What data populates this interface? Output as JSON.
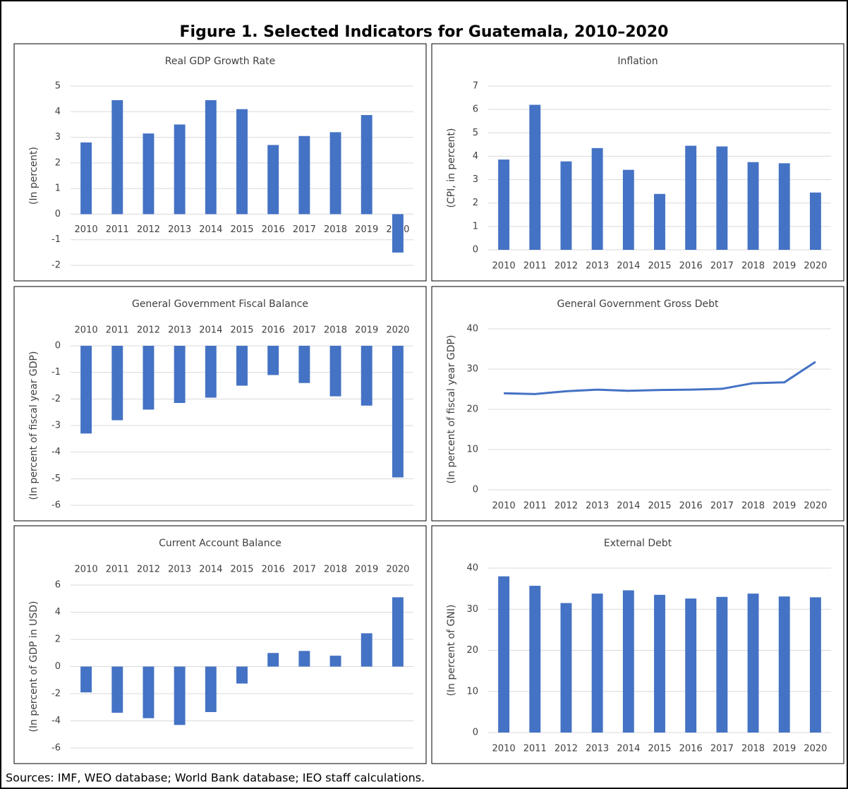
{
  "title": "Figure 1. Selected Indicators for Guatemala, 2010–2020",
  "source": "Sources: IMF, WEO database; World Bank database; IEO staff calculations.",
  "chart_data": [
    {
      "type": "bar",
      "title": "Real GDP Growth Rate",
      "y_label": "(In percent)",
      "x_label_position": "axis",
      "categories": [
        "2010",
        "2011",
        "2012",
        "2013",
        "2014",
        "2015",
        "2016",
        "2017",
        "2018",
        "2019",
        "2020"
      ],
      "values": [
        2.8,
        4.45,
        3.15,
        3.5,
        4.45,
        4.1,
        2.7,
        3.05,
        3.2,
        3.87,
        -1.5
      ],
      "color": "#4472c4",
      "ylim": [
        -2,
        5
      ],
      "yticks": [
        -2,
        -1,
        0,
        1,
        2,
        3,
        4,
        5
      ],
      "grid": true
    },
    {
      "type": "bar",
      "title": "Inflation",
      "y_label": "(CPI, in percent)",
      "x_label_position": "bottom",
      "categories": [
        "2010",
        "2011",
        "2012",
        "2013",
        "2014",
        "2015",
        "2016",
        "2017",
        "2018",
        "2019",
        "2020"
      ],
      "values": [
        3.86,
        6.2,
        3.78,
        4.35,
        3.42,
        2.39,
        4.45,
        4.42,
        3.75,
        3.7,
        2.45
      ],
      "color": "#4472c4",
      "ylim": [
        0,
        7
      ],
      "yticks": [
        0,
        1,
        2,
        3,
        4,
        5,
        6,
        7
      ],
      "grid": true
    },
    {
      "type": "bar",
      "title": "General Government Fiscal Balance",
      "y_label": "(In percent of fiscal year GDP)",
      "x_label_position": "top",
      "categories": [
        "2010",
        "2011",
        "2012",
        "2013",
        "2014",
        "2015",
        "2016",
        "2017",
        "2018",
        "2019",
        "2020"
      ],
      "values": [
        -3.3,
        -2.8,
        -2.4,
        -2.15,
        -1.95,
        -1.5,
        -1.1,
        -1.4,
        -1.9,
        -2.25,
        -4.95
      ],
      "color": "#4472c4",
      "ylim": [
        -6,
        0
      ],
      "yticks": [
        -6,
        -5,
        -4,
        -3,
        -2,
        -1,
        0
      ],
      "grid": true
    },
    {
      "type": "line",
      "title": "General Government Gross Debt",
      "y_label": "(In percent of fiscal year GDP)",
      "x_label_position": "bottom",
      "categories": [
        "2010",
        "2011",
        "2012",
        "2013",
        "2014",
        "2015",
        "2016",
        "2017",
        "2018",
        "2019",
        "2020"
      ],
      "values": [
        24,
        23.8,
        24.5,
        24.9,
        24.6,
        24.8,
        24.9,
        25.1,
        26.5,
        26.7,
        31.8
      ],
      "color": "#4472c4",
      "ylim": [
        0,
        40
      ],
      "yticks": [
        0,
        10,
        20,
        30,
        40
      ],
      "grid": true
    },
    {
      "type": "bar",
      "title": "Current Account Balance",
      "y_label": "(In percent of GDP in USD)",
      "x_label_position": "top",
      "categories": [
        "2010",
        "2011",
        "2012",
        "2013",
        "2014",
        "2015",
        "2016",
        "2017",
        "2018",
        "2019",
        "2020"
      ],
      "values": [
        -1.9,
        -3.4,
        -3.8,
        -4.3,
        -3.35,
        -1.25,
        1.0,
        1.15,
        0.8,
        2.45,
        5.1
      ],
      "color": "#4472c4",
      "ylim": [
        -6,
        6
      ],
      "yticks": [
        -6,
        -4,
        -2,
        0,
        2,
        4,
        6
      ],
      "grid": true
    },
    {
      "type": "bar",
      "title": "External Debt",
      "y_label": "(In percent of GNI)",
      "x_label_position": "bottom",
      "categories": [
        "2010",
        "2011",
        "2012",
        "2013",
        "2014",
        "2015",
        "2016",
        "2017",
        "2018",
        "2019",
        "2020"
      ],
      "values": [
        38,
        35.7,
        31.5,
        33.8,
        34.6,
        33.5,
        32.6,
        33.0,
        33.8,
        33.1,
        32.9
      ],
      "color": "#4472c4",
      "ylim": [
        0,
        40
      ],
      "yticks": [
        0,
        10,
        20,
        30,
        40
      ],
      "grid": true
    }
  ]
}
